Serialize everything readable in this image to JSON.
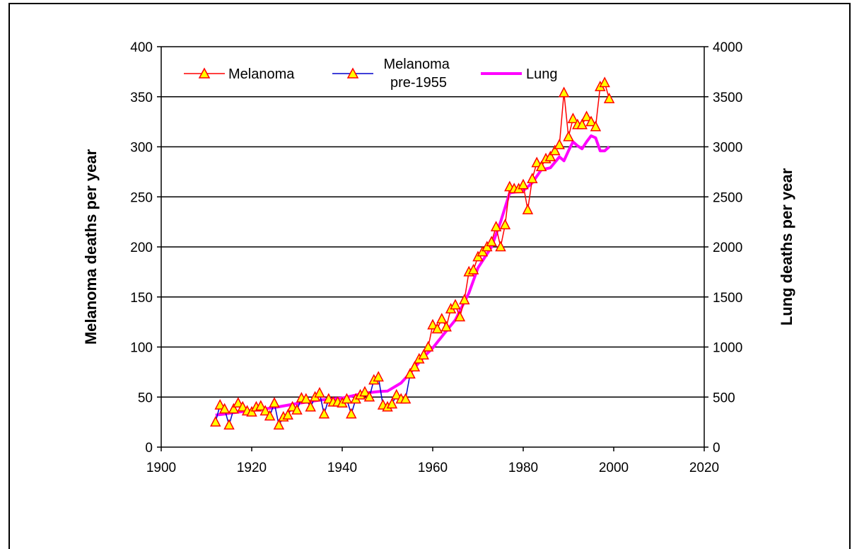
{
  "chart_data": {
    "type": "line",
    "ylabel": "Melanoma deaths per year",
    "y2label": "Lung deaths per year",
    "xlim": [
      1900,
      2020
    ],
    "ylim": [
      0,
      400
    ],
    "y2lim": [
      0,
      4000
    ],
    "x_ticks": [
      1900,
      1920,
      1940,
      1960,
      1980,
      2000,
      2020
    ],
    "y_ticks": [
      0,
      50,
      100,
      150,
      200,
      250,
      300,
      350,
      400
    ],
    "y2_ticks": [
      0,
      500,
      1000,
      1500,
      2000,
      2500,
      3000,
      3500,
      4000
    ],
    "grid": "horizontal",
    "legend_position": "top-left",
    "series": [
      {
        "name": "Melanoma",
        "axis": "left",
        "color": "#ff0000",
        "marker": "triangle",
        "marker_fill": "#ffff00",
        "x": [
          1955,
          1956,
          1957,
          1958,
          1959,
          1960,
          1961,
          1962,
          1963,
          1964,
          1965,
          1966,
          1967,
          1968,
          1969,
          1970,
          1971,
          1972,
          1973,
          1974,
          1975,
          1976,
          1977,
          1978,
          1979,
          1980,
          1981,
          1982,
          1983,
          1984,
          1985,
          1986,
          1987,
          1988,
          1989,
          1990,
          1991,
          1992,
          1993,
          1994,
          1995,
          1996,
          1997,
          1998,
          1999
        ],
        "values": [
          73,
          80,
          88,
          92,
          100,
          122,
          118,
          128,
          120,
          138,
          142,
          130,
          147,
          175,
          177,
          190,
          195,
          200,
          205,
          220,
          200,
          222,
          260,
          258,
          258,
          262,
          237,
          268,
          284,
          280,
          288,
          290,
          296,
          302,
          354,
          310,
          328,
          322,
          322,
          330,
          325,
          320,
          360,
          364,
          348
        ]
      },
      {
        "name": "Melanoma pre-1955",
        "axis": "left",
        "color": "#0000cc",
        "marker": "triangle",
        "marker_fill": "#ffff00",
        "x": [
          1912,
          1913,
          1914,
          1915,
          1916,
          1917,
          1918,
          1919,
          1920,
          1921,
          1922,
          1923,
          1924,
          1925,
          1926,
          1927,
          1928,
          1929,
          1930,
          1931,
          1932,
          1933,
          1934,
          1935,
          1936,
          1937,
          1938,
          1939,
          1940,
          1941,
          1942,
          1943,
          1944,
          1945,
          1946,
          1947,
          1948,
          1949,
          1950,
          1951,
          1952,
          1953,
          1954,
          1955
        ],
        "values": [
          25,
          42,
          38,
          22,
          38,
          44,
          40,
          36,
          35,
          40,
          41,
          36,
          31,
          44,
          22,
          30,
          32,
          40,
          37,
          49,
          48,
          40,
          50,
          54,
          33,
          48,
          45,
          45,
          44,
          48,
          33,
          48,
          52,
          55,
          50,
          67,
          70,
          42,
          40,
          43,
          52,
          48,
          48,
          73
        ]
      },
      {
        "name": "Lung",
        "axis": "right",
        "color": "#ff00ff",
        "x": [
          1912,
          1914,
          1916,
          1918,
          1920,
          1925,
          1930,
          1935,
          1940,
          1945,
          1948,
          1950,
          1953,
          1955,
          1958,
          1960,
          1963,
          1965,
          1968,
          1970,
          1973,
          1975,
          1977,
          1980,
          1982,
          1984,
          1986,
          1988,
          1989,
          1990,
          1991,
          1992,
          1993,
          1994,
          1995,
          1996,
          1997,
          1998,
          1999
        ],
        "values": [
          320,
          330,
          345,
          355,
          365,
          395,
          435,
          470,
          490,
          540,
          555,
          560,
          640,
          740,
          900,
          990,
          1160,
          1270,
          1540,
          1790,
          2000,
          2250,
          2540,
          2560,
          2640,
          2770,
          2790,
          2900,
          2860,
          2960,
          3050,
          3010,
          2980,
          3050,
          3110,
          3090,
          2960,
          2960,
          3000
        ]
      }
    ]
  }
}
